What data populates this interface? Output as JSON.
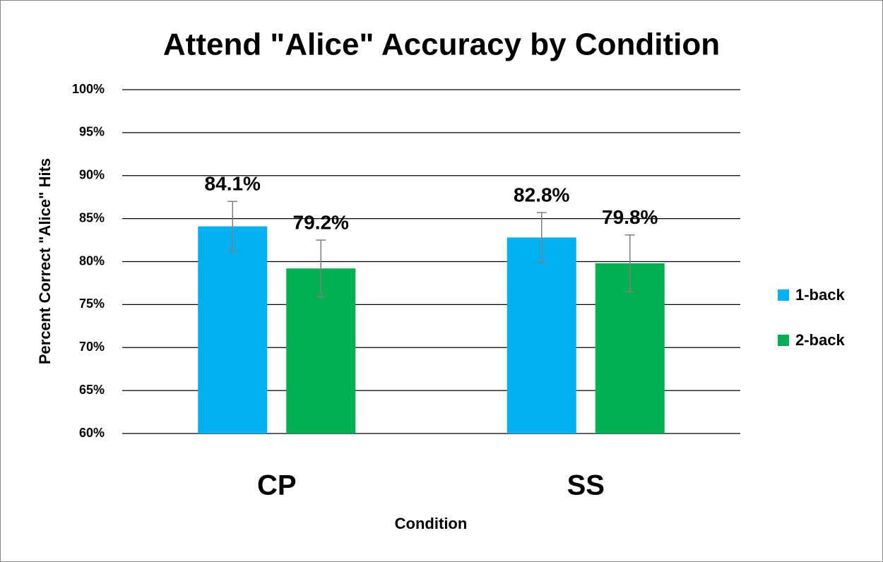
{
  "chart_data": {
    "type": "bar",
    "title": "Attend \"Alice\" Accuracy by Condition",
    "x_label": "Condition",
    "y_label": "Percent Correct \"Alice\" Hits",
    "categories": [
      "CP",
      "SS"
    ],
    "series": [
      {
        "name": "1-back",
        "color": "#00b0f0",
        "values": [
          84.1,
          82.8
        ],
        "value_labels": [
          "84.1%",
          "82.8%"
        ],
        "errors": [
          2.9,
          2.9
        ]
      },
      {
        "name": "2-back",
        "color": "#00b050",
        "values": [
          79.2,
          79.8
        ],
        "value_labels": [
          "79.2%",
          "79.8%"
        ],
        "errors": [
          3.3,
          3.3
        ]
      }
    ],
    "ylim": [
      60,
      100
    ],
    "yticks": [
      {
        "value": 60,
        "label": "60%"
      },
      {
        "value": 65,
        "label": "65%"
      },
      {
        "value": 70,
        "label": "70%"
      },
      {
        "value": 75,
        "label": "75%"
      },
      {
        "value": 80,
        "label": "80%"
      },
      {
        "value": 85,
        "label": "85%"
      },
      {
        "value": 90,
        "label": "90%"
      },
      {
        "value": 95,
        "label": "95%"
      },
      {
        "value": 100,
        "label": "100%"
      }
    ],
    "grid": true,
    "legend": "right"
  }
}
